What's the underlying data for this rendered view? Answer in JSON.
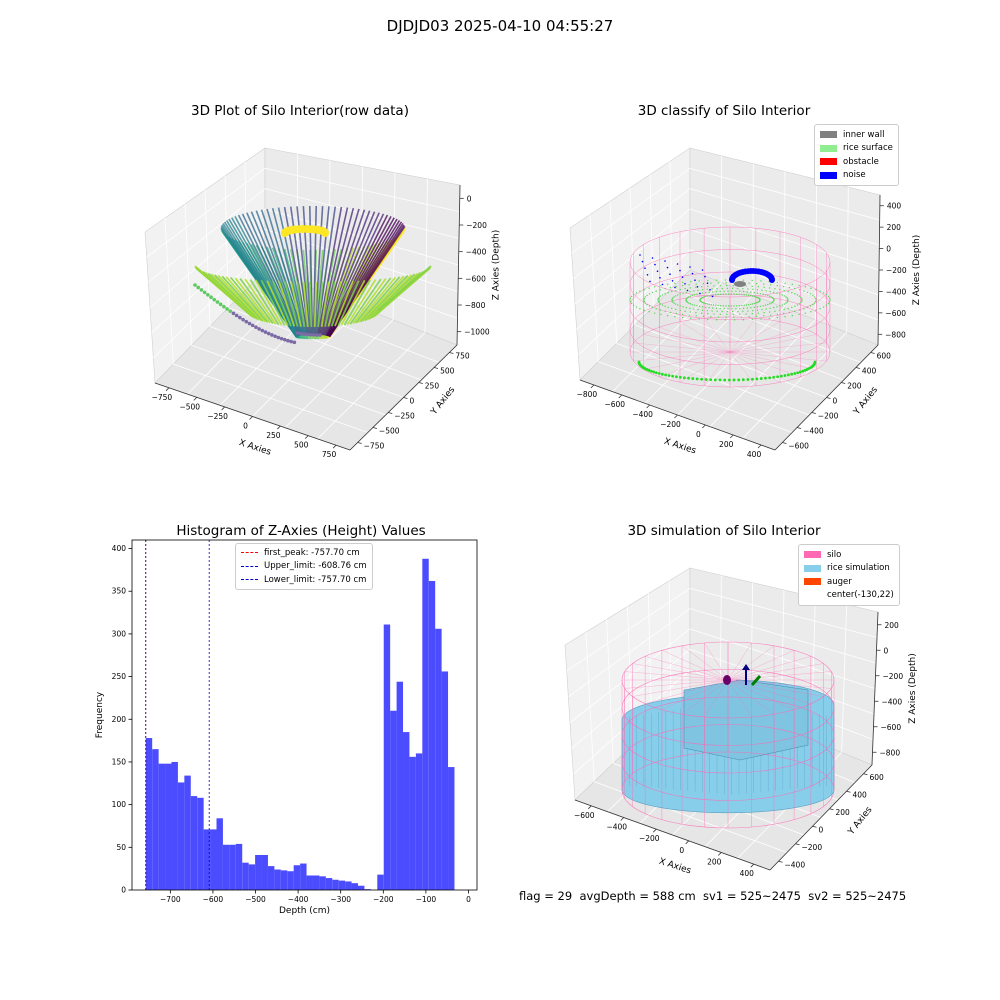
{
  "suptitle": "DJDJD03 2025-04-10 04:55:27",
  "panels": {
    "raw": {
      "title": "3D Plot of Silo Interior(row data)",
      "xlabel": "X Axies",
      "ylabel": "Y Axies",
      "zlabel": "Z Axies (Depth)",
      "xticks": [
        "−750",
        "−500",
        "−250",
        "0",
        "250",
        "500",
        "750"
      ],
      "yticks": [
        "−750",
        "−500",
        "−250",
        "0",
        "250",
        "500",
        "750"
      ],
      "zticks": [
        "0",
        "−200",
        "−400",
        "−600",
        "−800",
        "−1000"
      ]
    },
    "classify": {
      "title": "3D classify of Silo Interior",
      "xlabel": "X Axies",
      "ylabel": "Y Axies",
      "zlabel": "Z Axies (Depth)",
      "xticks": [
        "−800",
        "−600",
        "−400",
        "−200",
        "0",
        "200",
        "400"
      ],
      "yticks": [
        "−600",
        "−400",
        "−200",
        "0",
        "200",
        "400",
        "600"
      ],
      "zticks": [
        "400",
        "200",
        "0",
        "−200",
        "−400",
        "−600",
        "−800"
      ],
      "legend": [
        {
          "label": "inner wall",
          "color": "#808080"
        },
        {
          "label": "rice surface",
          "color": "#90ee90"
        },
        {
          "label": "obstacle",
          "color": "#ff0000"
        },
        {
          "label": "noise",
          "color": "#0000ff"
        }
      ]
    },
    "simulation": {
      "title": "3D simulation of Silo Interior",
      "xlabel": "X Axies",
      "ylabel": "Y Axies",
      "zlabel": "Z Axies (Depth)",
      "xticks": [
        "−600",
        "−400",
        "−200",
        "0",
        "200",
        "400"
      ],
      "yticks": [
        "−400",
        "−200",
        "0",
        "200",
        "400",
        "600"
      ],
      "zticks": [
        "200",
        "0",
        "−200",
        "−400",
        "−600",
        "−800"
      ],
      "legend": [
        {
          "label": "silo",
          "color": "#ff69b4"
        },
        {
          "label": "rice simulation",
          "color": "#87ceeb"
        },
        {
          "label": "auger",
          "color": "#ff4500"
        },
        {
          "label": "center(-130,22)",
          "color": ""
        }
      ]
    }
  },
  "chart_data": {
    "type": "bar",
    "title": "Histogram of Z-Axies (Height) Values",
    "xlabel": "Depth (cm)",
    "ylabel": "Frequency",
    "xlim": [
      -790,
      20
    ],
    "ylim": [
      0,
      410
    ],
    "xticks": [
      -700,
      -600,
      -500,
      -400,
      -300,
      -200,
      -100,
      0
    ],
    "xtick_labels": [
      "−700",
      "−600",
      "−500",
      "−400",
      "−300",
      "−200",
      "−100",
      "0"
    ],
    "yticks": [
      0,
      50,
      100,
      150,
      200,
      250,
      300,
      350,
      400
    ],
    "bar_color": "#4c4cff",
    "bin_start": -757.7,
    "bin_width": 15.1,
    "values": [
      178,
      165,
      148,
      148,
      150,
      126,
      134,
      110,
      108,
      71,
      71,
      84,
      53,
      53,
      54,
      32,
      30,
      41,
      41,
      28,
      24,
      23,
      22,
      29,
      31,
      17,
      17,
      16,
      14,
      12,
      11,
      10,
      8,
      5,
      1,
      0,
      18,
      311,
      210,
      244,
      185,
      156,
      160,
      388,
      362,
      306,
      256,
      144
    ],
    "lines": [
      {
        "label": "first_peak: -757.70 cm",
        "x": -757.7,
        "color": "#ff0000"
      },
      {
        "label": "Upper_limit: -608.76 cm",
        "x": -608.76,
        "color": "#0000cd"
      },
      {
        "label": "Lower_limit: -757.70 cm",
        "x": -757.7,
        "color": "#0000cd"
      }
    ]
  },
  "status": {
    "text": "flag = 29  avgDepth = 588 cm  sv1 = 525~2475  sv2 = 525~2475"
  }
}
